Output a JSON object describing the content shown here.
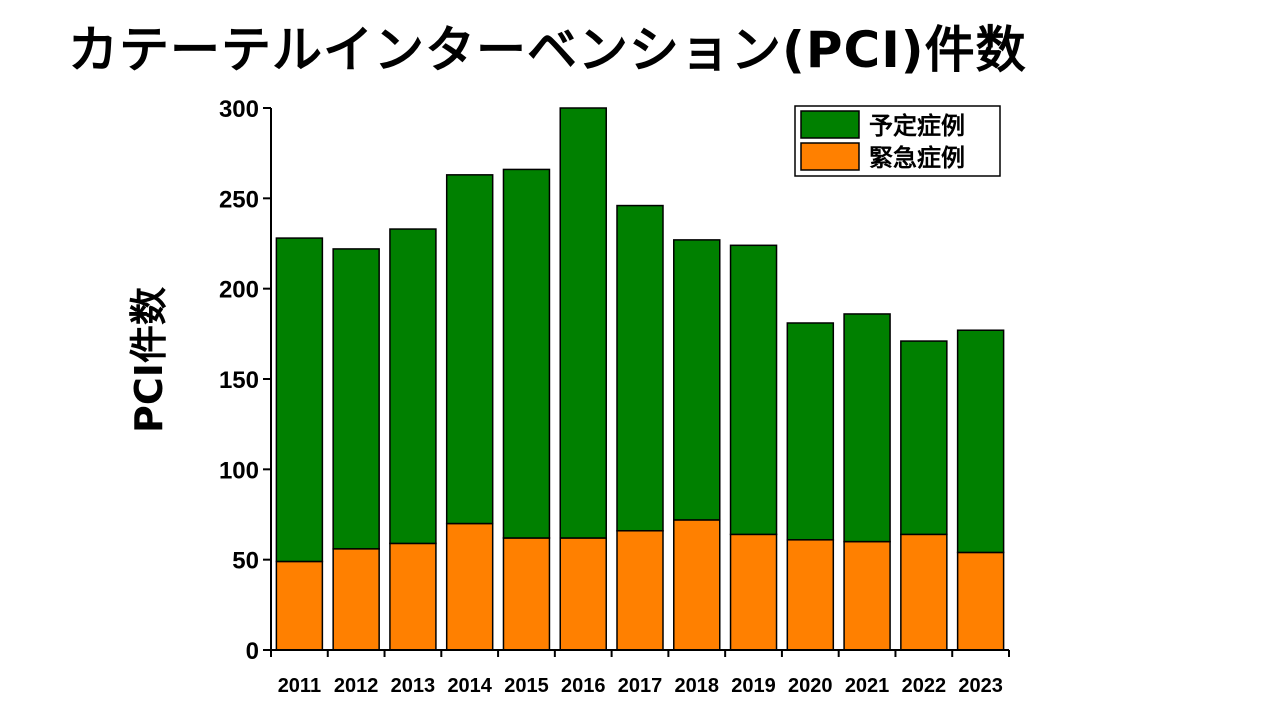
{
  "chart_data": {
    "type": "bar",
    "stacked": true,
    "title": "カテーテルインターベンション(PCI)件数",
    "xlabel": "",
    "ylabel": "PCI件数",
    "ylim": [
      0,
      300
    ],
    "yticks": [
      0,
      50,
      100,
      150,
      200,
      250,
      300
    ],
    "categories": [
      "2011",
      "2012",
      "2013",
      "2014",
      "2015",
      "2016",
      "2017",
      "2018",
      "2019",
      "2020",
      "2021",
      "2022",
      "2023"
    ],
    "series": [
      {
        "name": "緊急症例",
        "color": "#ff8000",
        "values": [
          49,
          56,
          59,
          70,
          62,
          62,
          66,
          72,
          64,
          61,
          60,
          64,
          54
        ]
      },
      {
        "name": "予定症例",
        "color": "#008000",
        "values": [
          179,
          166,
          174,
          193,
          204,
          238,
          180,
          155,
          160,
          120,
          126,
          107,
          123
        ]
      }
    ],
    "legend": {
      "position": "top-right",
      "order": [
        "予定症例",
        "緊急症例"
      ]
    },
    "grid": false
  }
}
